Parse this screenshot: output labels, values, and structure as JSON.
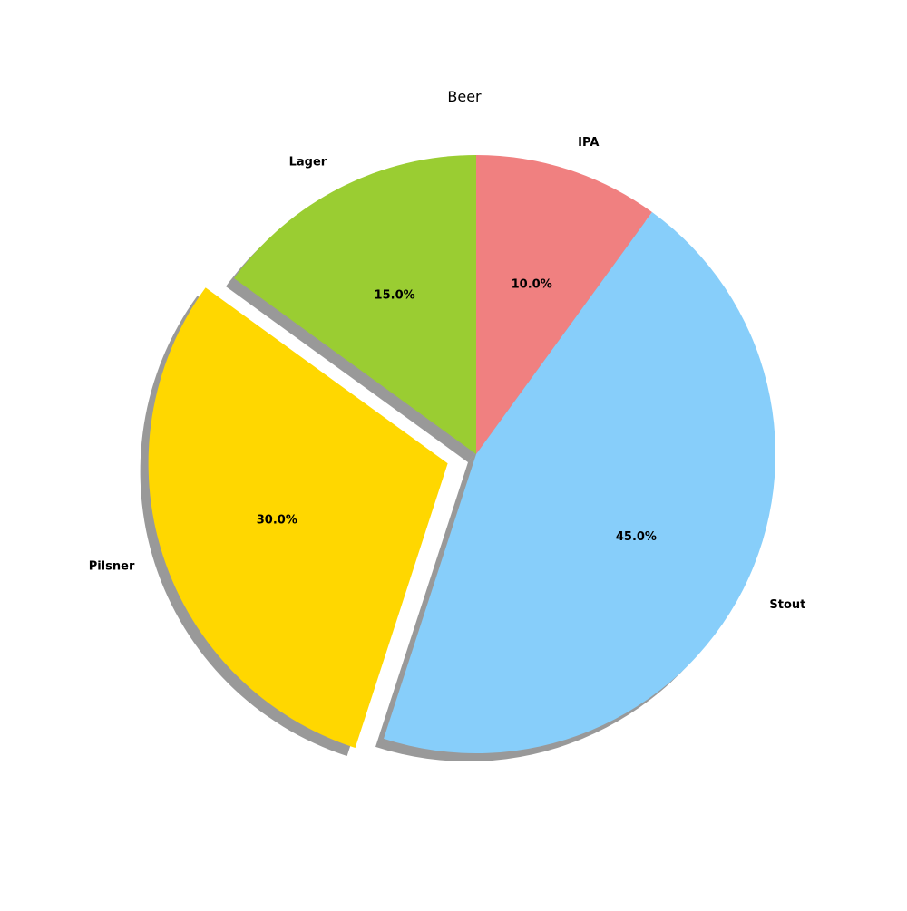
{
  "chart_data": {
    "type": "pie",
    "title": "Beer",
    "categories": [
      "IPA",
      "Stout",
      "Pilsner",
      "Lager"
    ],
    "values": [
      10,
      45,
      30,
      15
    ],
    "percent_labels": [
      "10.0%",
      "45.0%",
      "30.0%",
      "15.0%"
    ],
    "colors": [
      "#F08080",
      "#87CEFA",
      "#FFD700",
      "#9ACD32"
    ],
    "explode": [
      0,
      0,
      0.1,
      0
    ],
    "start_angle": 90,
    "direction": "clockwise",
    "shadow": true,
    "legend": "none"
  }
}
